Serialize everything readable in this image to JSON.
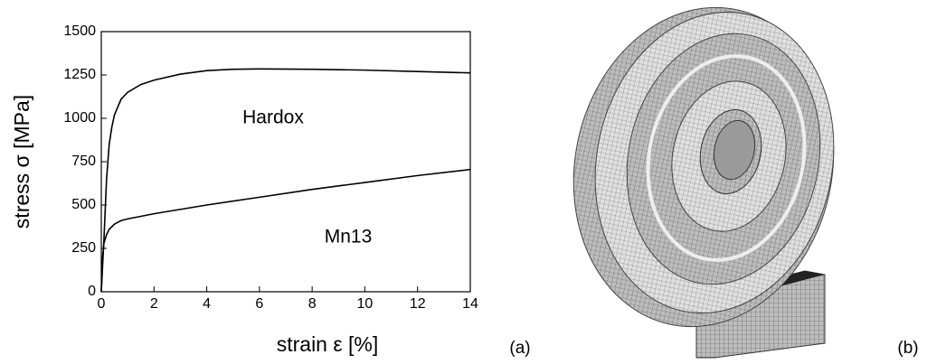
{
  "chart_data": {
    "type": "line",
    "x_label": "strain ε [%]",
    "y_label": "stress σ [MPa]",
    "xlim": [
      0,
      14
    ],
    "xticks": [
      0,
      2,
      4,
      6,
      8,
      10,
      12,
      14
    ],
    "ylim": [
      0,
      1500
    ],
    "yticks": [
      0,
      250,
      500,
      750,
      1000,
      1250,
      1500
    ],
    "grid": false,
    "series": [
      {
        "name": "Hardox",
        "color": "#000000",
        "x": [
          0,
          0.1,
          0.2,
          0.3,
          0.4,
          0.5,
          0.75,
          1,
          1.5,
          2,
          3,
          4,
          5,
          6,
          8,
          10,
          12,
          14
        ],
        "values": [
          0,
          300,
          650,
          850,
          950,
          1020,
          1110,
          1150,
          1195,
          1220,
          1255,
          1275,
          1283,
          1285,
          1283,
          1278,
          1270,
          1262
        ]
      },
      {
        "name": "Mn13",
        "color": "#000000",
        "x": [
          0,
          0.05,
          0.1,
          0.2,
          0.3,
          0.5,
          0.75,
          1,
          1.5,
          2,
          4,
          6,
          8,
          10,
          12,
          14
        ],
        "values": [
          0,
          200,
          280,
          330,
          360,
          390,
          410,
          420,
          435,
          450,
          500,
          545,
          590,
          630,
          670,
          705
        ]
      }
    ]
  },
  "panel_labels": [
    "(a)",
    "(b)"
  ]
}
